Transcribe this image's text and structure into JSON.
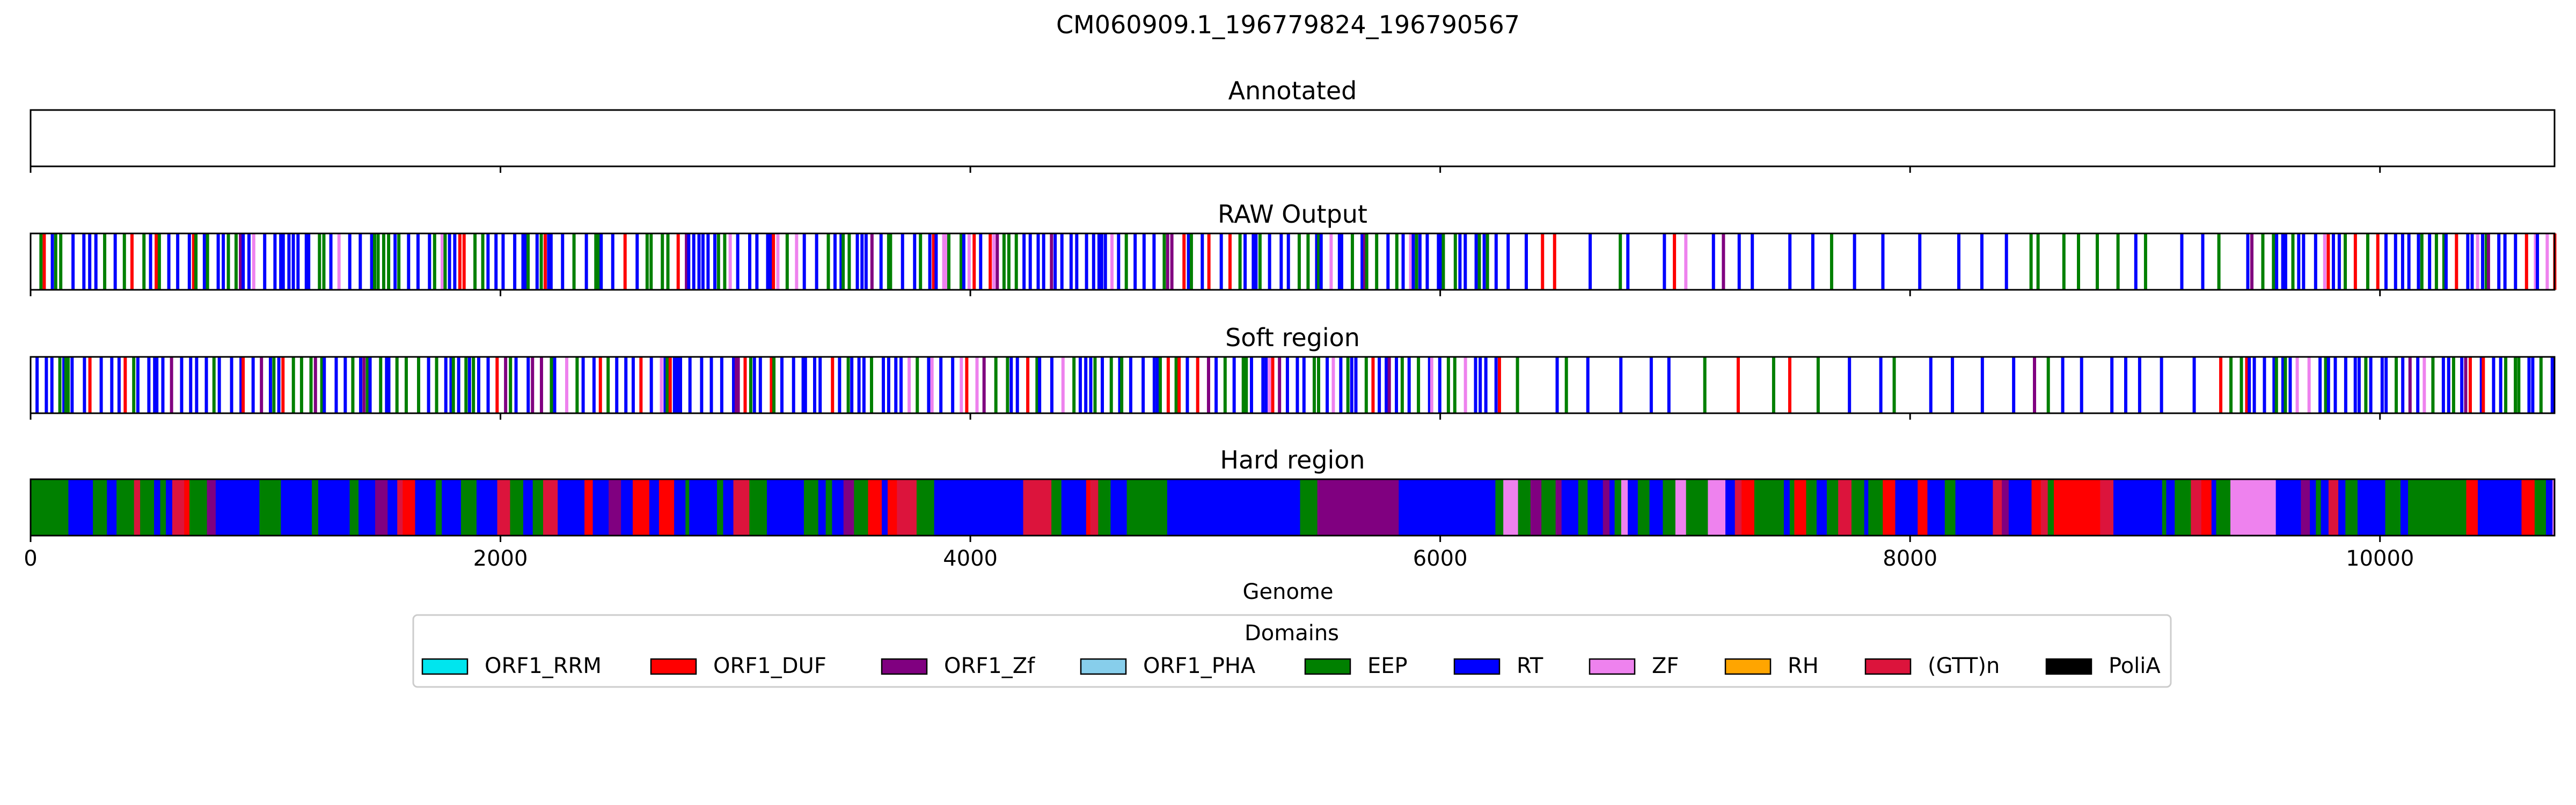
{
  "chart_data": {
    "type": "genome_track",
    "title": "CM060909.1_196779824_196790567",
    "xlabel": "Genome",
    "xlim": [
      0,
      10743
    ],
    "xticks": [
      0,
      2000,
      4000,
      6000,
      8000,
      10000
    ],
    "xtick_labels": [
      "0",
      "2000",
      "4000",
      "6000",
      "8000",
      "10000"
    ],
    "panels": [
      {
        "title": "Annotated",
        "segments": []
      },
      {
        "title": "RAW Output",
        "segments": [],
        "fill": "sparse"
      },
      {
        "title": "Soft region",
        "segments": [],
        "fill": "sparse"
      },
      {
        "title": "Hard region",
        "segments": [],
        "fill": "dense"
      }
    ],
    "legend": {
      "title": "Domains",
      "placement": "bottom-center",
      "items": [
        {
          "label": "ORF1_RRM",
          "color": "#00e5ee"
        },
        {
          "label": "ORF1_DUF",
          "color": "#ff0000"
        },
        {
          "label": "ORF1_Zf",
          "color": "#800080"
        },
        {
          "label": "ORF1_PHA",
          "color": "#87ceeb"
        },
        {
          "label": "EEP",
          "color": "#008000"
        },
        {
          "label": "RT",
          "color": "#0000ff"
        },
        {
          "label": "ZF",
          "color": "#ee82ee"
        },
        {
          "label": "RH",
          "color": "#ffa500"
        },
        {
          "label": "(GTT)n",
          "color": "#dc143c"
        },
        {
          "label": "PoliA",
          "color": "#000000"
        }
      ]
    }
  }
}
